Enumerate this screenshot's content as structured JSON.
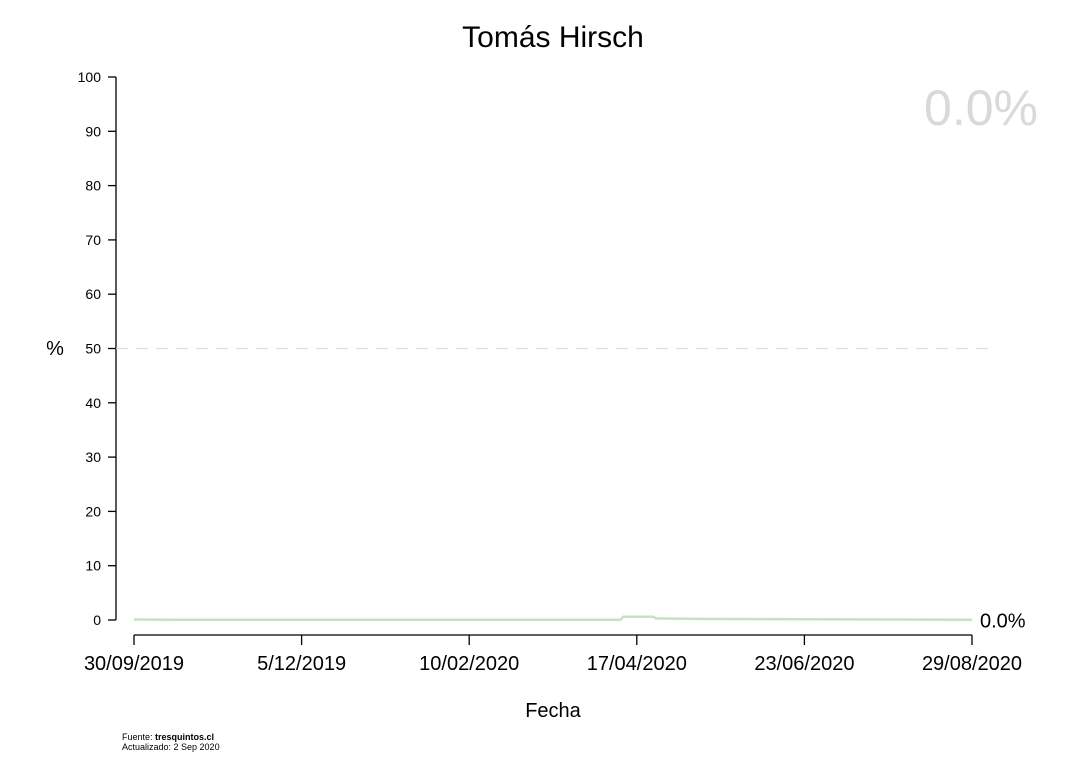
{
  "chart_data": {
    "type": "line",
    "title": "Tomás Hirsch",
    "xlabel": "Fecha",
    "ylabel": "%",
    "ylim": [
      0,
      100
    ],
    "yticks": [
      0,
      10,
      20,
      30,
      40,
      50,
      60,
      70,
      80,
      90,
      100
    ],
    "x_tick_labels": [
      "30/09/2019",
      "5/12/2019",
      "10/02/2020",
      "17/04/2020",
      "23/06/2020",
      "29/08/2020"
    ],
    "x_range": [
      "2019-09-30",
      "2020-08-29"
    ],
    "reference_line": {
      "y": 50,
      "style": "dashed",
      "color": "#dddddd"
    },
    "series": [
      {
        "color": "#c8e0c4",
        "points": [
          {
            "x": "2019-09-30",
            "y": 0.1
          },
          {
            "x": "2019-10-15",
            "y": 0.05
          },
          {
            "x": "2020-04-11",
            "y": 0.05
          },
          {
            "x": "2020-04-12",
            "y": 0.6
          },
          {
            "x": "2020-04-24",
            "y": 0.6
          },
          {
            "x": "2020-04-25",
            "y": 0.3
          },
          {
            "x": "2020-05-10",
            "y": 0.2
          },
          {
            "x": "2020-08-29",
            "y": 0.05
          }
        ]
      }
    ],
    "end_label": "0.0%",
    "current_value_label": "0.0%",
    "current_value_color": "#d9d9d9",
    "grid": false
  },
  "footer": {
    "source_prefix": "Fuente: ",
    "source_site": "tresquintos.cl",
    "updated": "Actualizado: 2 Sep 2020"
  }
}
